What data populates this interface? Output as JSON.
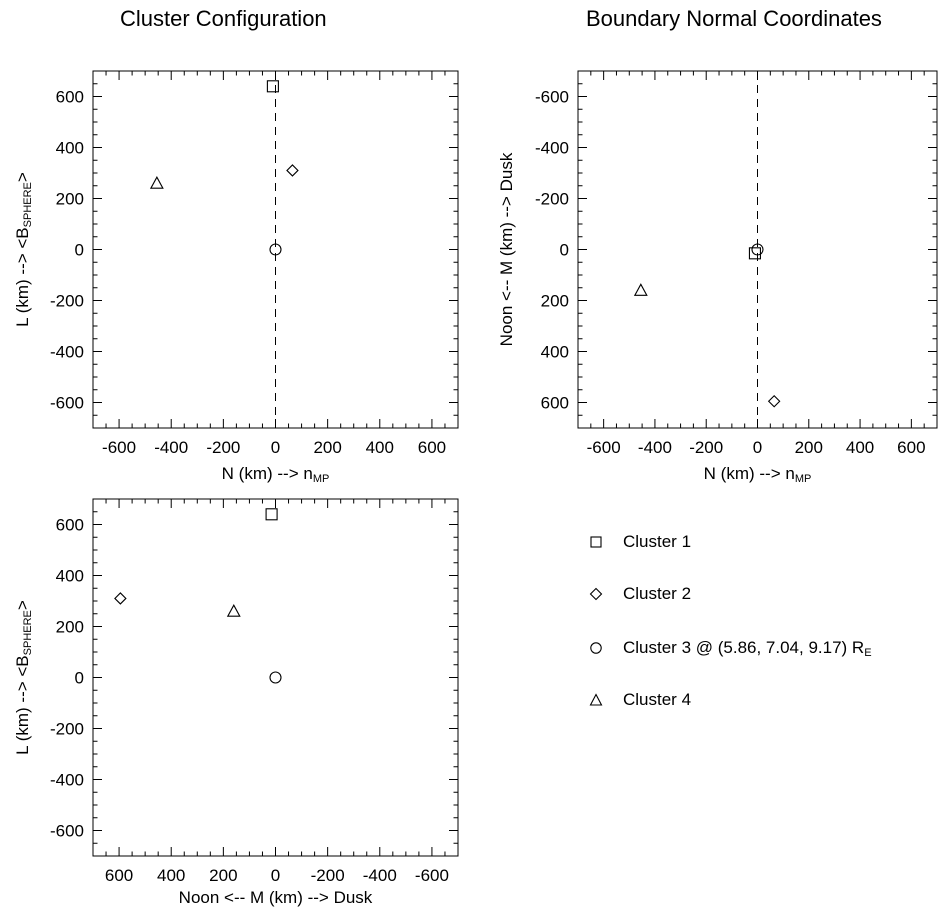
{
  "titles": {
    "left": "Cluster Configuration",
    "right": "Boundary Normal Coordinates"
  },
  "legend": [
    {
      "marker": "square-icon",
      "label": "Cluster 1",
      "sub": ""
    },
    {
      "marker": "diamond-icon",
      "label": "Cluster 2",
      "sub": ""
    },
    {
      "marker": "circle-icon",
      "label": "Cluster 3 @ (5.86, 7.04, 9.17) R",
      "sub": "E"
    },
    {
      "marker": "triangle-icon",
      "label": "Cluster 4",
      "sub": ""
    }
  ],
  "chart_data": [
    {
      "type": "scatter",
      "id": "N-L",
      "xlabel": {
        "parts": [
          [
            "N (km)   --> n",
            ""
          ],
          [
            "MP",
            "sub"
          ]
        ]
      },
      "ylabel": {
        "parts": [
          [
            "L (km)    --> <B",
            ""
          ],
          [
            "SPHERE",
            "sub"
          ],
          [
            ">",
            ""
          ]
        ]
      },
      "xlim": [
        -700,
        700
      ],
      "ylim": [
        -700,
        700
      ],
      "x_reversed": false,
      "y_reversed": false,
      "xticks": [
        -600,
        -400,
        -200,
        0,
        200,
        400,
        600
      ],
      "yticks": [
        -600,
        -400,
        -200,
        0,
        200,
        400,
        600
      ],
      "vline_x": 0,
      "points": [
        {
          "cluster": 1,
          "marker": "square",
          "x": -10,
          "y": 640
        },
        {
          "cluster": 2,
          "marker": "diamond",
          "x": 65,
          "y": 310
        },
        {
          "cluster": 3,
          "marker": "circle",
          "x": 0,
          "y": 0
        },
        {
          "cluster": 4,
          "marker": "triangle",
          "x": -455,
          "y": 260
        }
      ]
    },
    {
      "type": "scatter",
      "id": "N-M",
      "xlabel": {
        "parts": [
          [
            "N (km)   --> n",
            ""
          ],
          [
            "MP",
            "sub"
          ]
        ]
      },
      "ylabel": {
        "parts": [
          [
            "Noon <--   M (km)   --> Dusk",
            ""
          ]
        ]
      },
      "xlim": [
        -700,
        700
      ],
      "ylim": [
        -700,
        700
      ],
      "x_reversed": false,
      "y_reversed": true,
      "xticks": [
        -600,
        -400,
        -200,
        0,
        200,
        400,
        600
      ],
      "yticks": [
        -600,
        -400,
        -200,
        0,
        200,
        400,
        600
      ],
      "vline_x": 0,
      "points": [
        {
          "cluster": 1,
          "marker": "square",
          "x": -10,
          "y": 15
        },
        {
          "cluster": 2,
          "marker": "diamond",
          "x": 65,
          "y": 595
        },
        {
          "cluster": 3,
          "marker": "circle",
          "x": 0,
          "y": 0
        },
        {
          "cluster": 4,
          "marker": "triangle",
          "x": -455,
          "y": 160
        }
      ]
    },
    {
      "type": "scatter",
      "id": "M-L",
      "xlabel": {
        "parts": [
          [
            "Noon <--   M (km)   --> Dusk",
            ""
          ]
        ]
      },
      "ylabel": {
        "parts": [
          [
            "L (km)    --> <B",
            ""
          ],
          [
            "SPHERE",
            "sub"
          ],
          [
            ">",
            ""
          ]
        ]
      },
      "xlim": [
        -700,
        700
      ],
      "ylim": [
        -700,
        700
      ],
      "x_reversed": true,
      "y_reversed": false,
      "xticks": [
        -600,
        -400,
        -200,
        0,
        200,
        400,
        600
      ],
      "yticks": [
        -600,
        -400,
        -200,
        0,
        200,
        400,
        600
      ],
      "vline_x": null,
      "points": [
        {
          "cluster": 1,
          "marker": "square",
          "x": 15,
          "y": 640
        },
        {
          "cluster": 2,
          "marker": "diamond",
          "x": 595,
          "y": 310
        },
        {
          "cluster": 3,
          "marker": "circle",
          "x": 0,
          "y": 0
        },
        {
          "cluster": 4,
          "marker": "triangle",
          "x": 160,
          "y": 260
        }
      ]
    }
  ]
}
